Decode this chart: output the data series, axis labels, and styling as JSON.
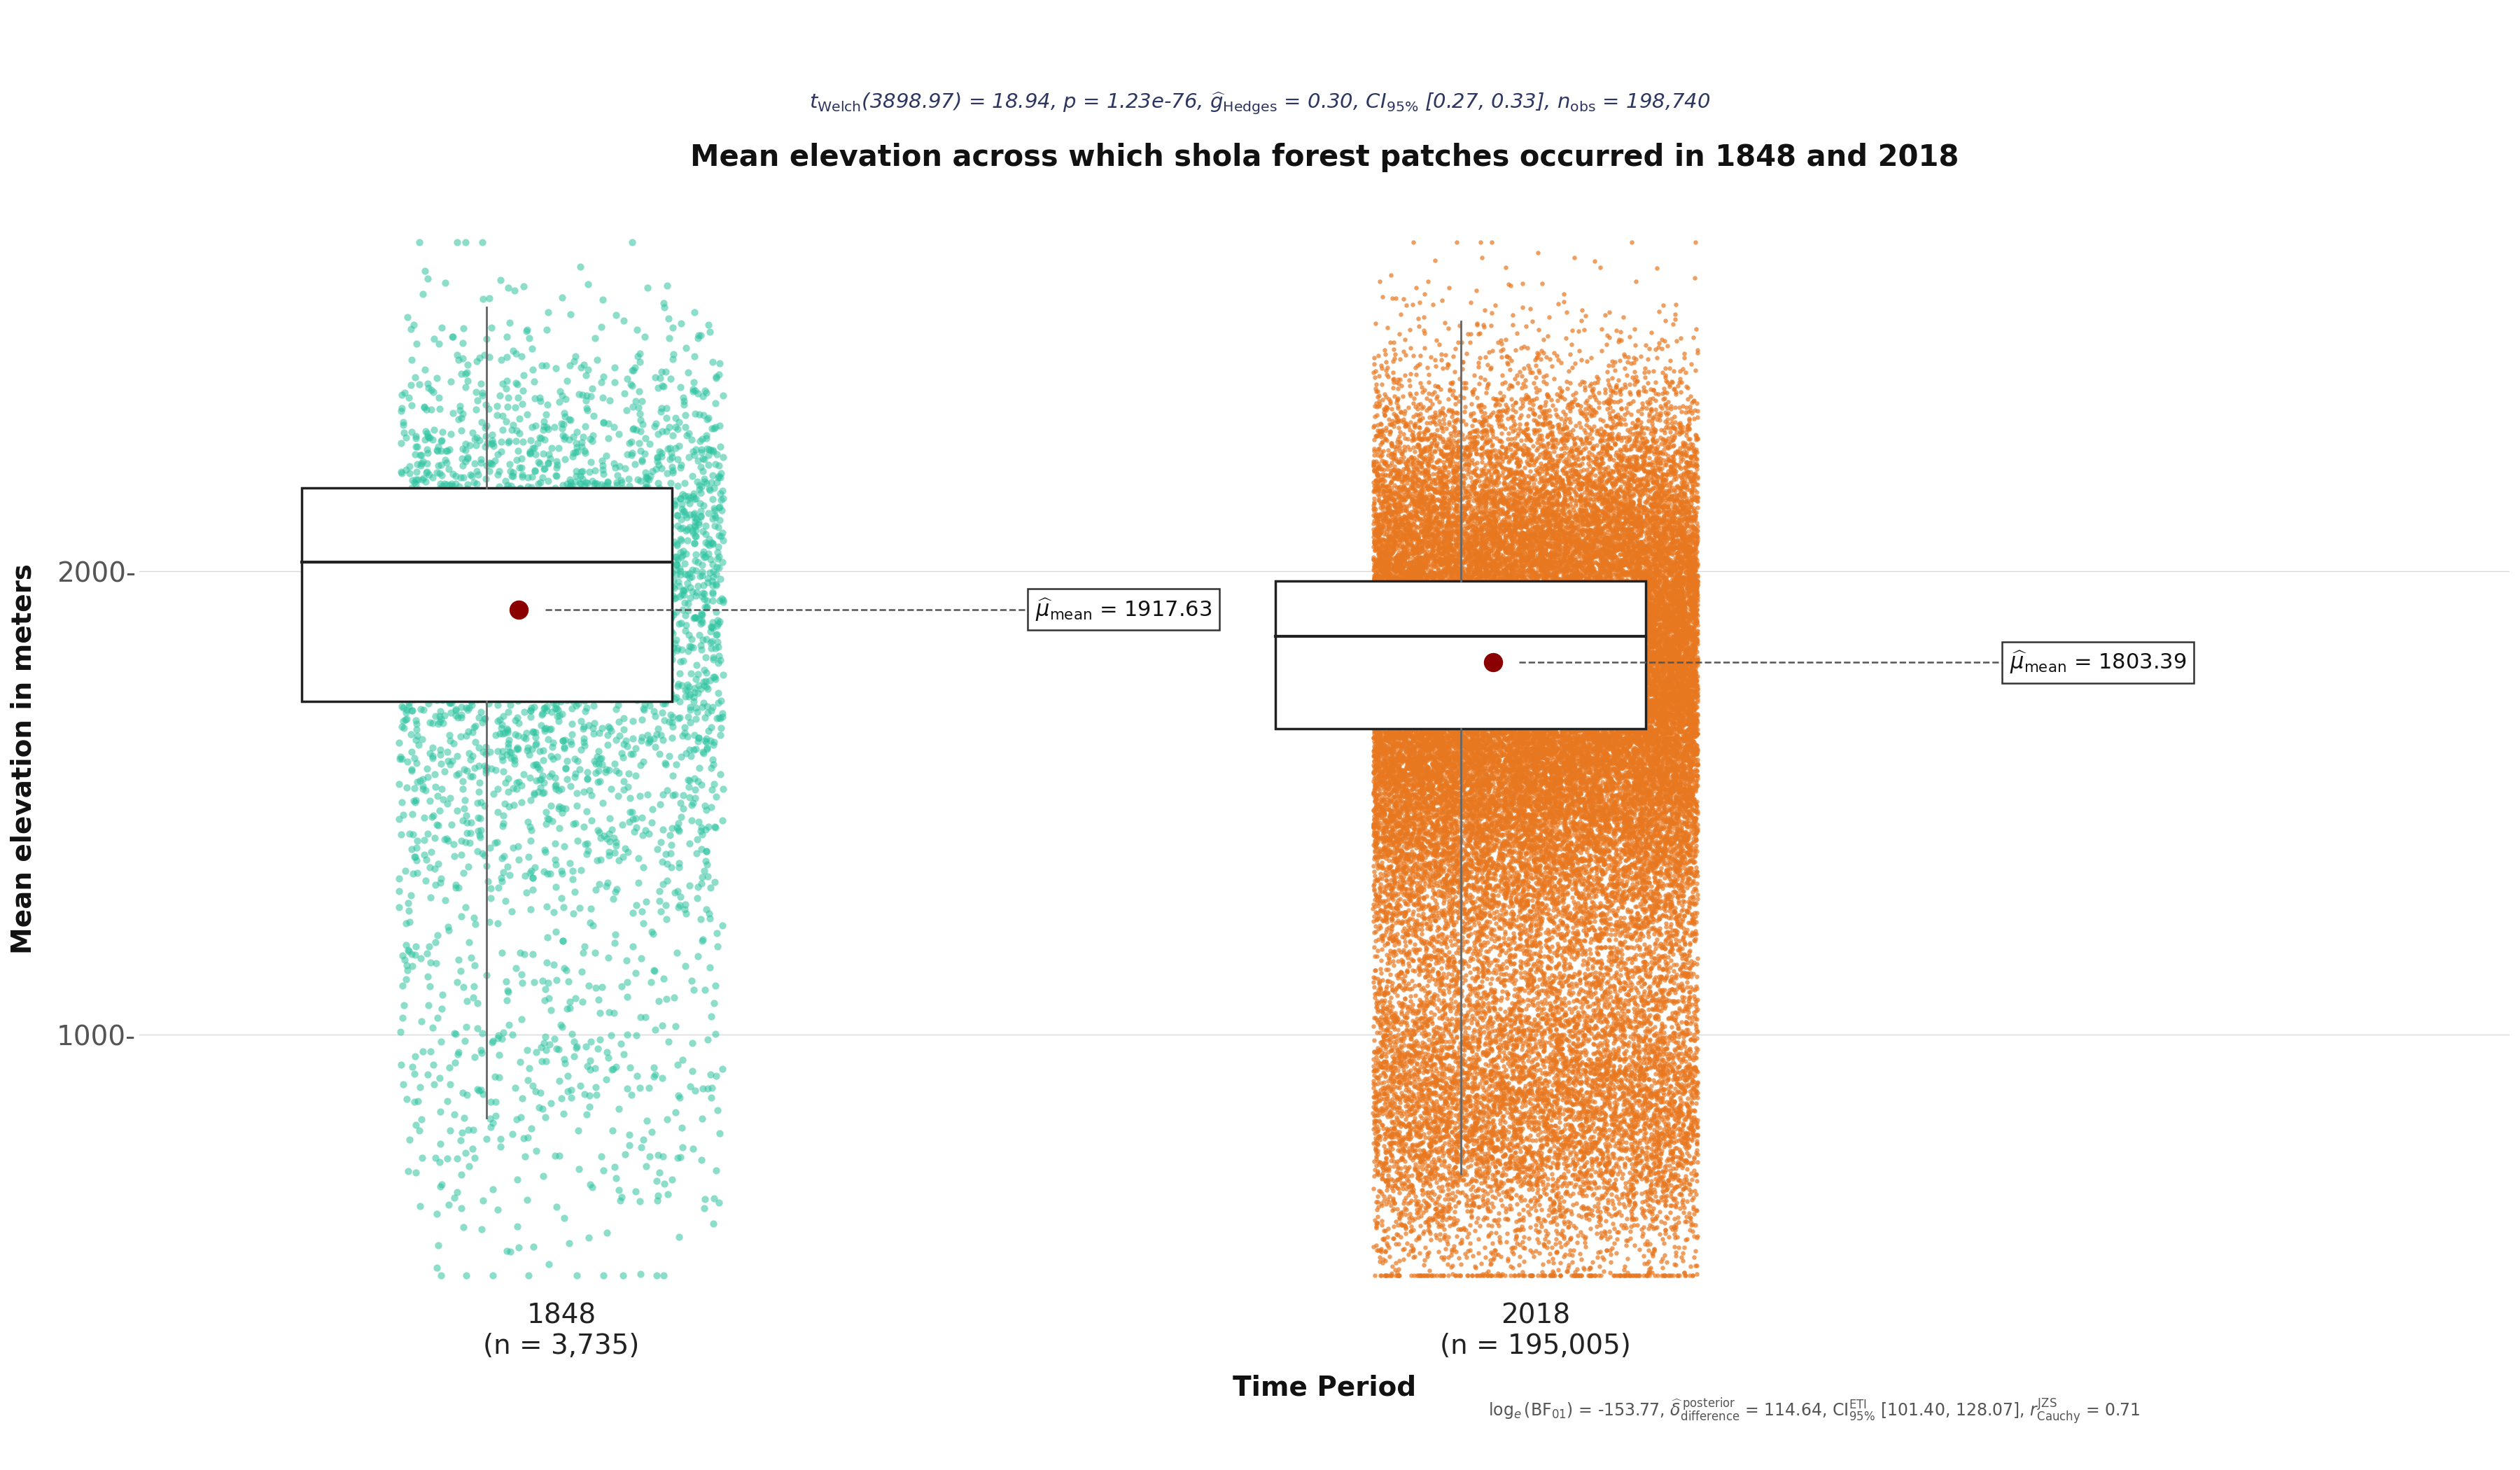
{
  "title": "Mean elevation across which shola forest patches occurred in 1848 and 2018",
  "xlabel": "Time Period",
  "ylabel": "Mean elevation in meters",
  "background_color": "#ffffff",
  "groups": [
    "1848",
    "2018"
  ],
  "n_labels": [
    "(n = 3,735)",
    "(n = 195,005)"
  ],
  "color_1848": "#2ec4a0",
  "color_2018": "#e87820",
  "mean_1848": 1917.63,
  "mean_2018": 1803.39,
  "median_1848": 2020,
  "median_2018": 1860,
  "q1_1848": 1720,
  "q3_1848": 2180,
  "q1_2018": 1660,
  "q3_2018": 1980,
  "whisker_low_1848": 820,
  "whisker_high_1848": 2570,
  "whisker_low_2018": 700,
  "whisker_high_2018": 2540,
  "ylim_low": 430,
  "ylim_high": 2760,
  "yticks": [
    1000,
    2000
  ],
  "dot_color": "#8b0000",
  "box_edge_color": "#222222",
  "n_jitter_1848": 3735,
  "n_jitter_2018": 50000,
  "seed": 42,
  "subtitle_color": "#2d3561",
  "bottom_note_color": "#555555"
}
